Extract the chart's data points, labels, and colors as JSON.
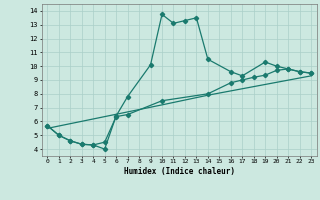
{
  "xlabel": "Humidex (Indice chaleur)",
  "xlim": [
    -0.5,
    23.5
  ],
  "ylim": [
    3.5,
    14.5
  ],
  "xticks": [
    0,
    1,
    2,
    3,
    4,
    5,
    6,
    7,
    8,
    9,
    10,
    11,
    12,
    13,
    14,
    15,
    16,
    17,
    18,
    19,
    20,
    21,
    22,
    23
  ],
  "yticks": [
    4,
    5,
    6,
    7,
    8,
    9,
    10,
    11,
    12,
    13,
    14
  ],
  "line_color": "#1a7a6e",
  "bg_color": "#cce8e0",
  "grid_color": "#aacfc8",
  "line1_x": [
    0,
    1,
    2,
    3,
    4,
    5,
    6,
    7,
    9,
    10,
    11,
    12,
    13,
    14,
    16,
    17,
    19,
    20,
    21,
    22,
    23
  ],
  "line1_y": [
    5.7,
    5.0,
    4.6,
    4.35,
    4.3,
    4.0,
    6.4,
    7.8,
    10.1,
    13.75,
    13.1,
    13.3,
    13.5,
    10.5,
    9.6,
    9.3,
    10.3,
    10.0,
    9.8,
    9.6,
    9.5
  ],
  "line2_x": [
    0,
    1,
    2,
    3,
    4,
    5,
    6,
    7,
    10,
    14,
    16,
    17,
    18,
    19,
    20,
    21,
    22,
    23
  ],
  "line2_y": [
    5.7,
    5.0,
    4.6,
    4.35,
    4.3,
    4.5,
    6.35,
    6.5,
    7.5,
    8.0,
    8.8,
    9.0,
    9.2,
    9.35,
    9.7,
    9.8,
    9.6,
    9.5
  ],
  "line3_x": [
    0,
    10,
    14,
    23
  ],
  "line3_y": [
    5.5,
    7.2,
    7.9,
    9.3
  ]
}
